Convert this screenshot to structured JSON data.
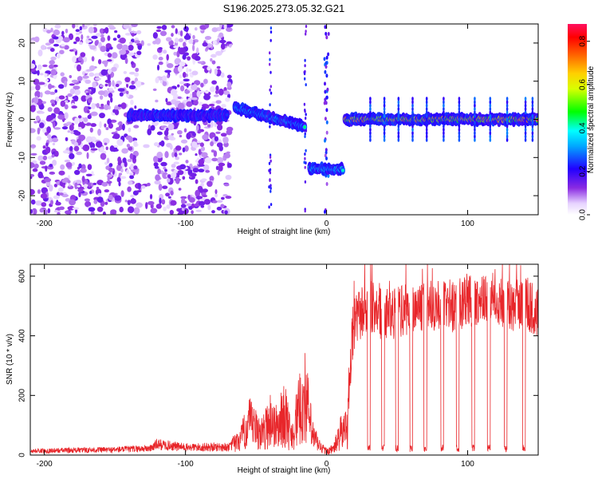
{
  "title": "S196.2025.273.05.32.G21",
  "colors": {
    "snr_line": "#e8262a",
    "axis": "#000000",
    "background": "#ffffff"
  },
  "chart_data": [
    {
      "type": "heatmap",
      "name": "spectrogram",
      "xlabel": "Height of straight line (km)",
      "ylabel": "Frequency (Hz)",
      "xlim": [
        -210,
        150
      ],
      "ylim": [
        -25,
        25
      ],
      "xticks": [
        -200,
        -100,
        0,
        100
      ],
      "yticks": [
        -20,
        -10,
        0,
        10,
        20
      ],
      "colorbar": {
        "label": "Normalized spectral amplitude",
        "range": [
          0.0,
          0.88
        ],
        "ticks": [
          0.0,
          0.2,
          0.4,
          0.6,
          0.8
        ],
        "tick_labels": [
          "0.0",
          "0.2",
          "0.4",
          "0.6",
          "0.8"
        ],
        "colormap": "rainbow (white-violet-blue-cyan-green-yellow-red-magenta)"
      },
      "features": [
        {
          "description": "scattered low-amplitude noise",
          "x_range": [
            -210,
            -68
          ],
          "freq_range": [
            -25,
            25
          ],
          "amplitude": 0.1
        },
        {
          "description": "near-zero tone, noisy",
          "x_range": [
            -140,
            -70
          ],
          "freq_center": 1,
          "amplitude": 0.25
        },
        {
          "description": "descending tone",
          "x_range": [
            -65,
            -15
          ],
          "freq_from": 3,
          "freq_to": -2,
          "amplitude": 0.45
        },
        {
          "description": "offset tone",
          "x_range": [
            -12,
            12
          ],
          "freq_center": -13,
          "amplitude": 0.5
        },
        {
          "description": "main zero-frequency tone",
          "x_range": [
            13,
            150
          ],
          "freq_center": 0,
          "amplitude": 0.85
        }
      ]
    },
    {
      "type": "line",
      "name": "snr",
      "xlabel": "Height of straight line (km)",
      "ylabel": "SNR (10 * v/v)",
      "xlim": [
        -210,
        150
      ],
      "ylim": [
        0,
        640
      ],
      "xticks": [
        -200,
        -100,
        0,
        100
      ],
      "yticks": [
        0,
        200,
        400,
        600
      ],
      "series": [
        {
          "name": "SNR",
          "x": [
            -210,
            -180,
            -150,
            -125,
            -120,
            -100,
            -80,
            -68,
            -60,
            -55,
            -50,
            -45,
            -40,
            -35,
            -30,
            -25,
            -20,
            -15,
            -10,
            -5,
            0,
            5,
            10,
            15,
            18,
            20,
            25,
            30,
            40,
            50,
            60,
            70,
            80,
            90,
            100,
            110,
            120,
            130,
            140,
            150
          ],
          "values": [
            15,
            18,
            20,
            25,
            40,
            28,
            30,
            30,
            100,
            180,
            140,
            120,
            200,
            150,
            230,
            110,
            230,
            330,
            110,
            50,
            20,
            35,
            120,
            160,
            380,
            440,
            480,
            500,
            470,
            480,
            490,
            500,
            510,
            500,
            520,
            510,
            530,
            490,
            520,
            470
          ]
        }
      ],
      "dropouts_x": [
        30,
        40,
        50,
        60,
        70,
        82,
        93,
        104,
        115,
        127,
        140
      ]
    }
  ]
}
